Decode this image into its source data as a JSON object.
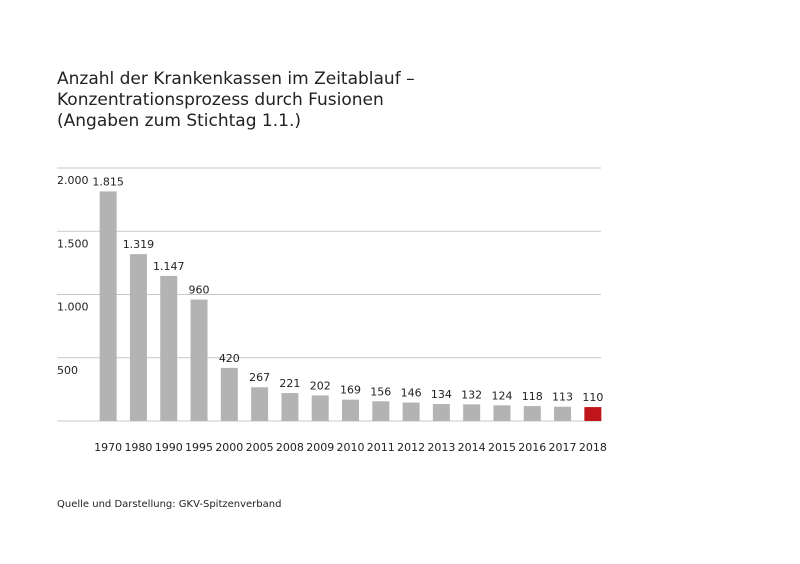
{
  "chart_data": {
    "type": "bar",
    "title_lines": [
      "Anzahl der Krankenkassen im Zeitablauf –",
      "Konzentrationsprozess durch Fusionen",
      "(Angaben zum Stichtag 1.1.)"
    ],
    "categories": [
      "1970",
      "1980",
      "1990",
      "1995",
      "2000",
      "2005",
      "2008",
      "2009",
      "2010",
      "2011",
      "2012",
      "2013",
      "2014",
      "2015",
      "2016",
      "2017",
      "2018"
    ],
    "values": [
      1815,
      1319,
      1147,
      960,
      420,
      267,
      221,
      202,
      169,
      156,
      146,
      134,
      132,
      124,
      118,
      113,
      110
    ],
    "value_labels": [
      "1.815",
      "1.319",
      "1.147",
      "960",
      "420",
      "267",
      "221",
      "202",
      "169",
      "156",
      "146",
      "134",
      "132",
      "124",
      "118",
      "113",
      "110"
    ],
    "colors": [
      "#b3b3b3",
      "#b3b3b3",
      "#b3b3b3",
      "#b3b3b3",
      "#b3b3b3",
      "#b3b3b3",
      "#b3b3b3",
      "#b3b3b3",
      "#b3b3b3",
      "#b3b3b3",
      "#b3b3b3",
      "#b3b3b3",
      "#b3b3b3",
      "#b3b3b3",
      "#b3b3b3",
      "#b3b3b3",
      "#c0161b"
    ],
    "ylim": [
      0,
      2000
    ],
    "yticks": [
      500,
      {
        "value": 1000,
        "label": "1.000"
      },
      {
        "value": 1500,
        "label": "1.500"
      },
      {
        "value": 2000,
        "label": "2.000"
      }
    ],
    "grid": true,
    "source": "Quelle und Darstellung: GKV-Spitzenverband"
  }
}
